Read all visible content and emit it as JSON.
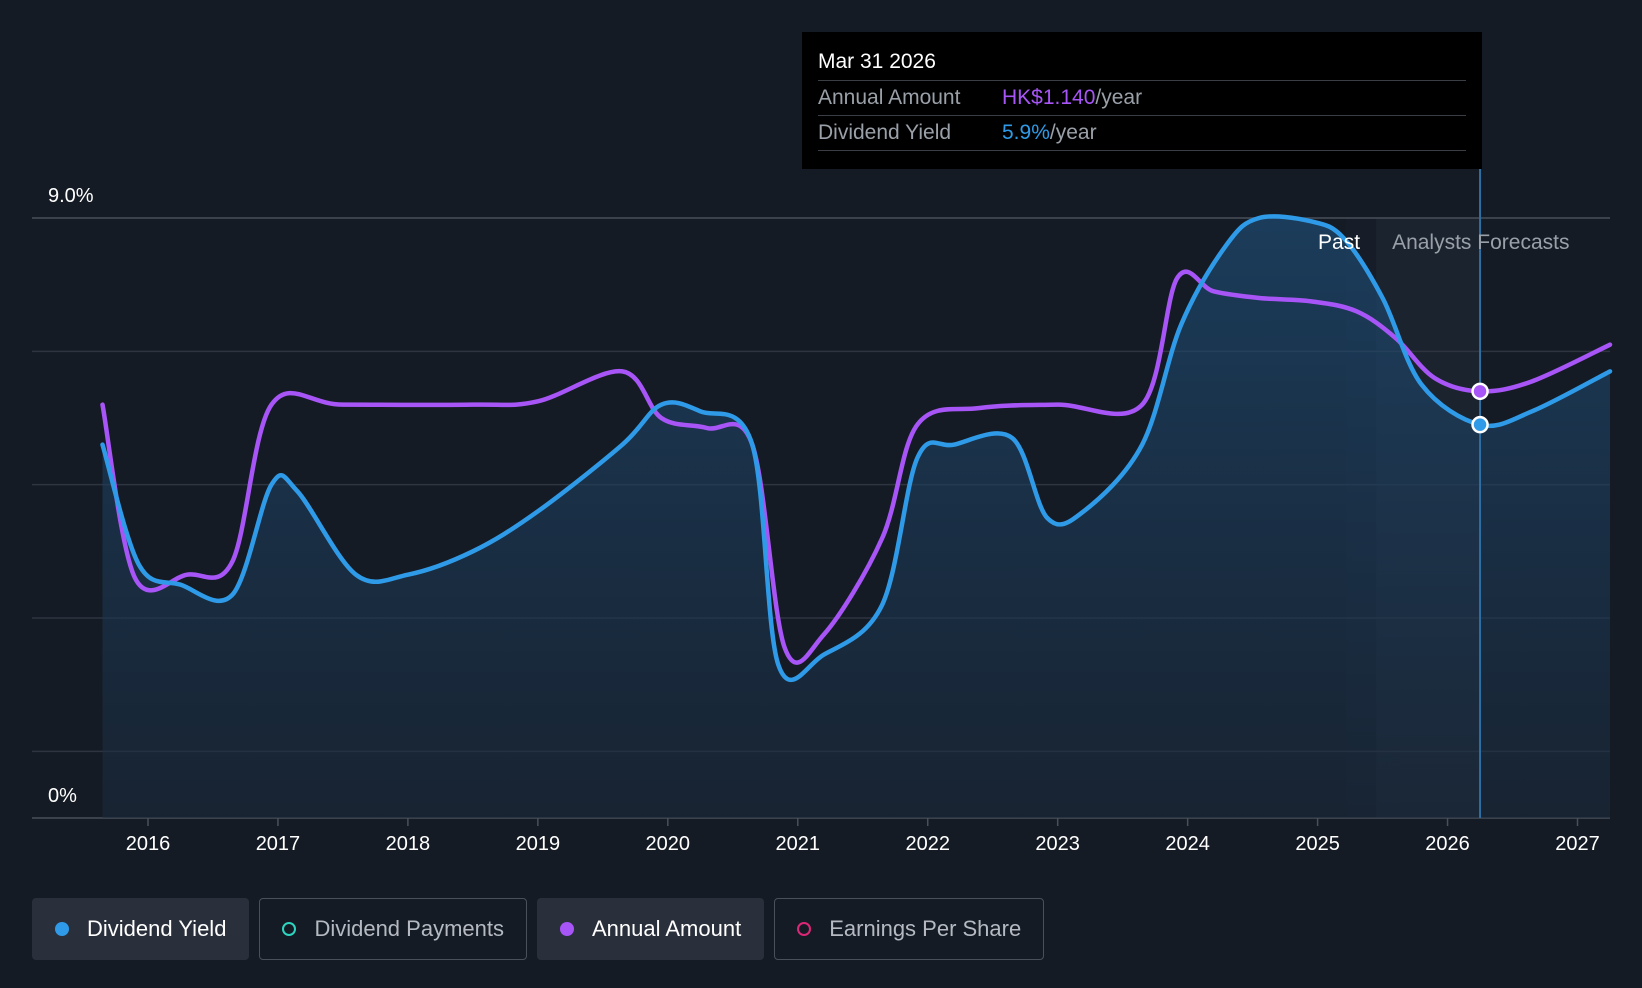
{
  "tooltip": {
    "date": "Mar 31 2026",
    "rows": [
      {
        "label": "Annual Amount",
        "value": "HK$1.140",
        "unit": "/year"
      },
      {
        "label": "Dividend Yield",
        "value": "5.9%",
        "unit": "/year"
      }
    ]
  },
  "colors": {
    "yield": "#2f9be8",
    "amount": "#a855f7",
    "payments": "#2dd4bf",
    "eps": "#db2777",
    "background": "#151b24"
  },
  "legend": [
    {
      "label": "Dividend Yield",
      "color": "#2f9be8",
      "active": true,
      "hollow": false
    },
    {
      "label": "Dividend Payments",
      "color": "#2dd4bf",
      "active": false,
      "hollow": true
    },
    {
      "label": "Annual Amount",
      "color": "#a855f7",
      "active": true,
      "hollow": false
    },
    {
      "label": "Earnings Per Share",
      "color": "#db2777",
      "active": false,
      "hollow": true
    }
  ],
  "chart_data": {
    "type": "line",
    "y_axis_labels": [
      "9.0%",
      "0%"
    ],
    "ylim": [
      0,
      9.0
    ],
    "xlim": [
      2015.6,
      2027.25
    ],
    "x_ticks": [
      2016,
      2017,
      2018,
      2019,
      2020,
      2021,
      2022,
      2023,
      2024,
      2025,
      2026,
      2027
    ],
    "x_tick_labels": [
      "2016",
      "2017",
      "2018",
      "2019",
      "2020",
      "2021",
      "2022",
      "2023",
      "2024",
      "2025",
      "2026",
      "2027"
    ],
    "region_labels": {
      "past": "Past",
      "forecast": "Analysts Forecasts"
    },
    "forecast_start": 2025.45,
    "selected_x": 2026.25,
    "grid": true,
    "legend_position": "bottom",
    "series": [
      {
        "name": "Dividend Yield",
        "color": "#2f9be8",
        "points": [
          [
            2015.65,
            5.6
          ],
          [
            2015.93,
            3.8
          ],
          [
            2016.25,
            3.5
          ],
          [
            2016.65,
            3.35
          ],
          [
            2016.95,
            5.0
          ],
          [
            2017.15,
            4.9
          ],
          [
            2017.6,
            3.65
          ],
          [
            2018.0,
            3.65
          ],
          [
            2018.5,
            4.0
          ],
          [
            2019.0,
            4.6
          ],
          [
            2019.65,
            5.6
          ],
          [
            2019.95,
            6.2
          ],
          [
            2020.25,
            6.1
          ],
          [
            2020.65,
            5.6
          ],
          [
            2020.85,
            2.3
          ],
          [
            2021.2,
            2.45
          ],
          [
            2021.65,
            3.2
          ],
          [
            2021.92,
            5.4
          ],
          [
            2022.2,
            5.6
          ],
          [
            2022.65,
            5.7
          ],
          [
            2022.92,
            4.5
          ],
          [
            2023.2,
            4.6
          ],
          [
            2023.65,
            5.6
          ],
          [
            2023.95,
            7.4
          ],
          [
            2024.3,
            8.6
          ],
          [
            2024.55,
            9.0
          ],
          [
            2024.95,
            8.95
          ],
          [
            2025.2,
            8.7
          ],
          [
            2025.5,
            7.8
          ],
          [
            2025.8,
            6.5
          ],
          [
            2026.25,
            5.9
          ],
          [
            2026.65,
            6.1
          ],
          [
            2027.25,
            6.7
          ]
        ]
      },
      {
        "name": "Annual Amount",
        "color": "#a855f7",
        "points": [
          [
            2015.65,
            6.2
          ],
          [
            2015.9,
            3.6
          ],
          [
            2016.3,
            3.65
          ],
          [
            2016.65,
            3.85
          ],
          [
            2016.95,
            6.2
          ],
          [
            2017.5,
            6.2
          ],
          [
            2018.5,
            6.2
          ],
          [
            2019.0,
            6.25
          ],
          [
            2019.65,
            6.7
          ],
          [
            2019.95,
            6.0
          ],
          [
            2020.3,
            5.85
          ],
          [
            2020.65,
            5.6
          ],
          [
            2020.9,
            2.55
          ],
          [
            2021.2,
            2.75
          ],
          [
            2021.65,
            4.2
          ],
          [
            2021.92,
            5.9
          ],
          [
            2022.4,
            6.15
          ],
          [
            2023.0,
            6.2
          ],
          [
            2023.65,
            6.2
          ],
          [
            2023.92,
            8.1
          ],
          [
            2024.2,
            7.9
          ],
          [
            2024.55,
            7.8
          ],
          [
            2024.95,
            7.75
          ],
          [
            2025.3,
            7.6
          ],
          [
            2025.6,
            7.2
          ],
          [
            2025.9,
            6.6
          ],
          [
            2026.25,
            6.4
          ],
          [
            2026.65,
            6.55
          ],
          [
            2027.25,
            7.1
          ]
        ]
      }
    ]
  }
}
